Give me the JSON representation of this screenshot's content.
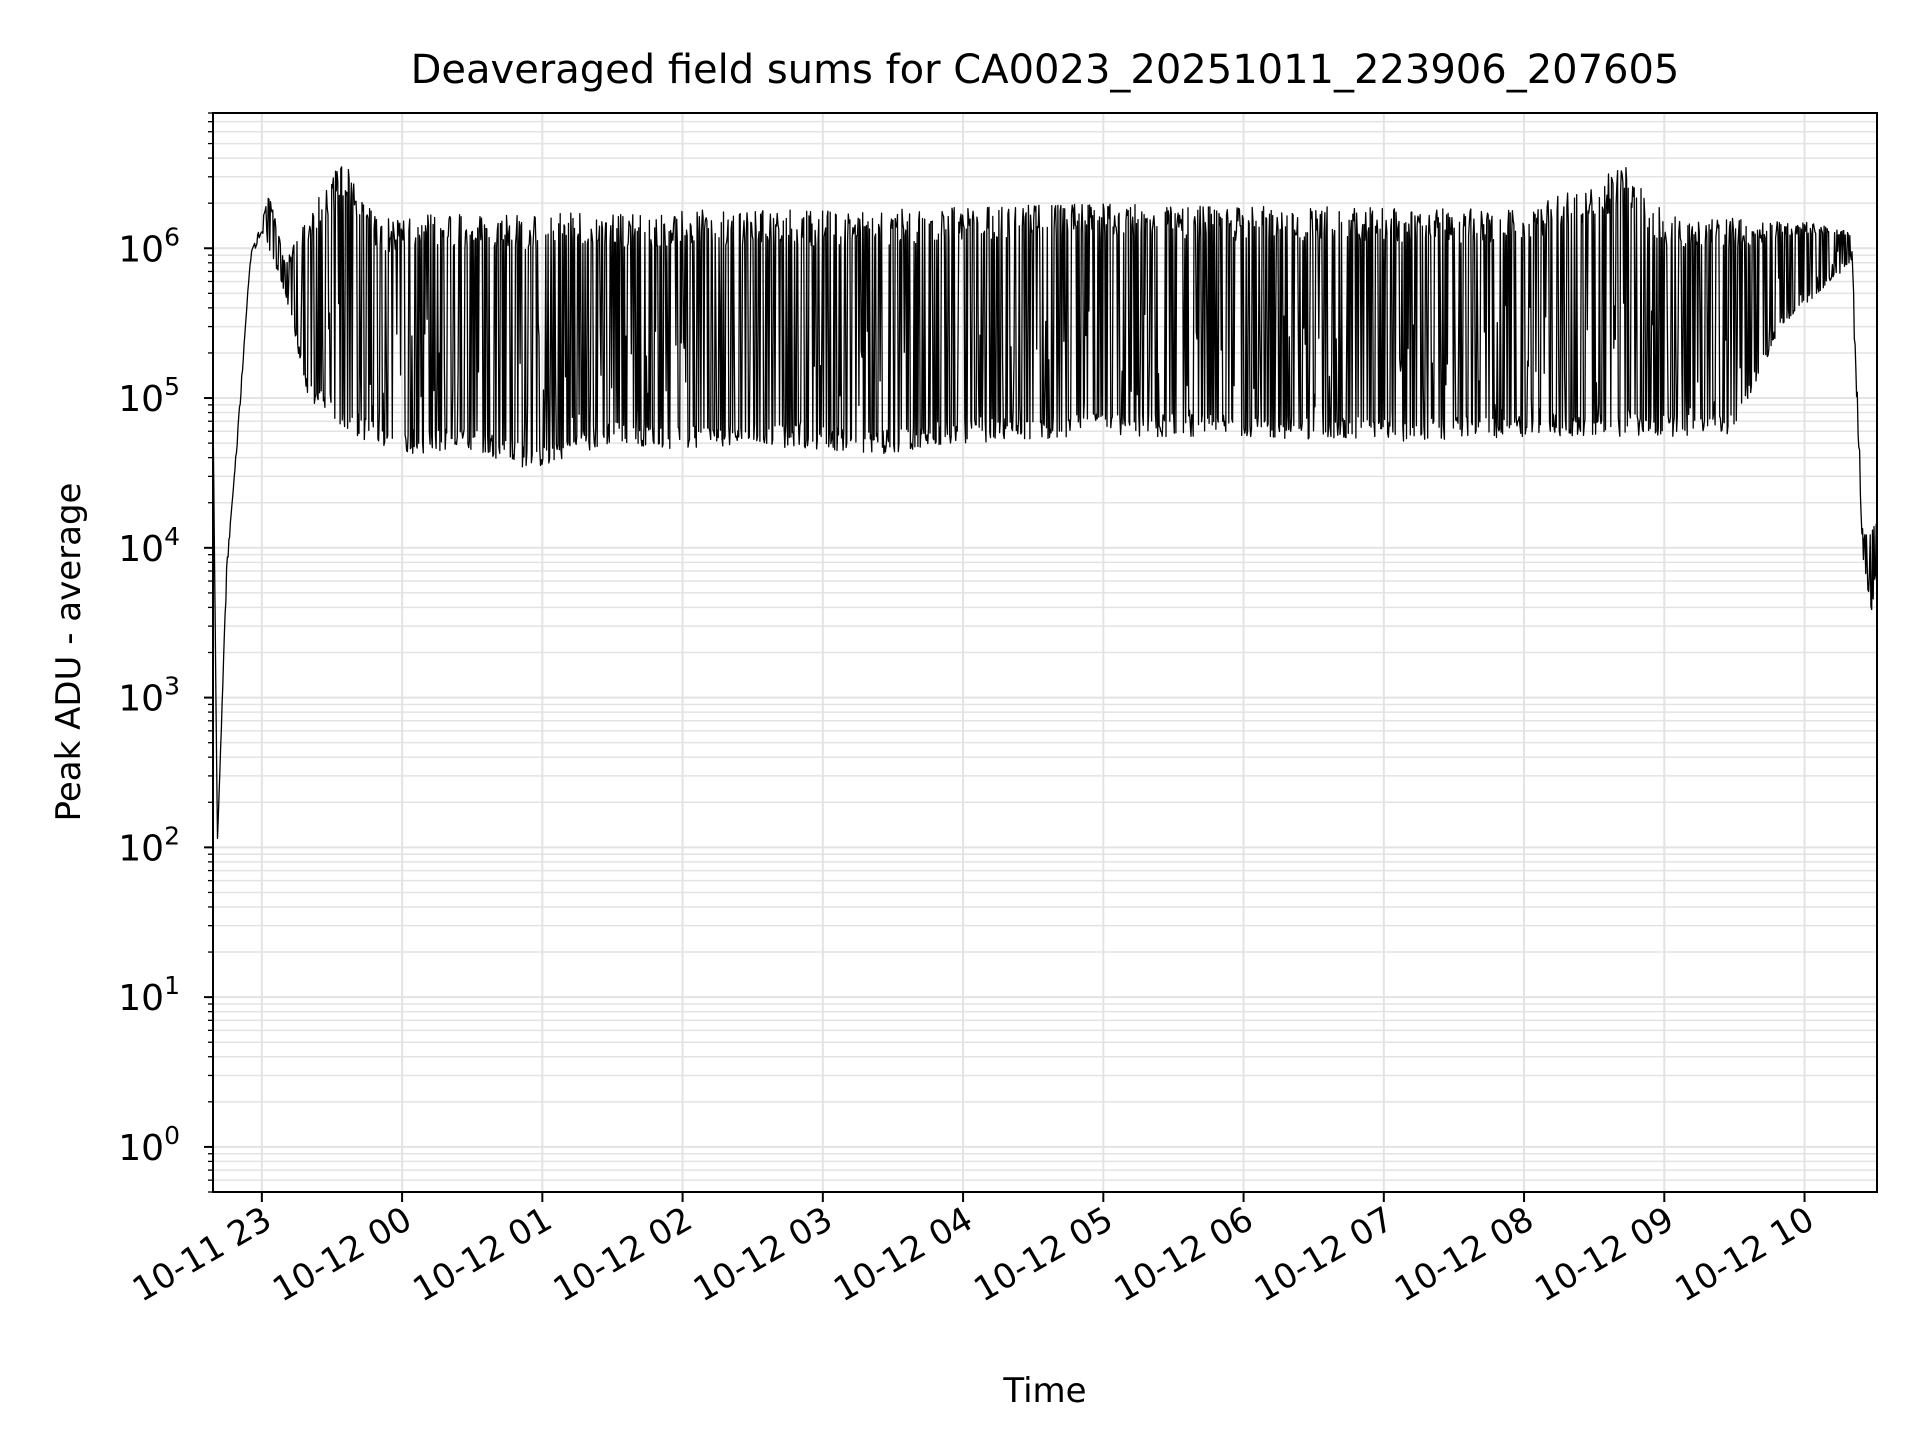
{
  "chart_data": {
    "type": "line",
    "title": "Deaveraged field sums for CA0023_20251011_223906_207605",
    "xlabel": "Time",
    "ylabel": "Peak ADU - average",
    "yscale": "log",
    "grid": true,
    "legend": "none",
    "x_range": [
      "2025-10-11T22:39:06",
      "2025-10-12T10:31:00"
    ],
    "y_range": [
      0.5,
      8000000
    ],
    "x_ticks": [
      {
        "label": "10-11 23",
        "time": "2025-10-11T23:00:00"
      },
      {
        "label": "10-12 00",
        "time": "2025-10-12T00:00:00"
      },
      {
        "label": "10-12 01",
        "time": "2025-10-12T01:00:00"
      },
      {
        "label": "10-12 02",
        "time": "2025-10-12T02:00:00"
      },
      {
        "label": "10-12 03",
        "time": "2025-10-12T03:00:00"
      },
      {
        "label": "10-12 04",
        "time": "2025-10-12T04:00:00"
      },
      {
        "label": "10-12 05",
        "time": "2025-10-12T05:00:00"
      },
      {
        "label": "10-12 06",
        "time": "2025-10-12T06:00:00"
      },
      {
        "label": "10-12 07",
        "time": "2025-10-12T07:00:00"
      },
      {
        "label": "10-12 08",
        "time": "2025-10-12T08:00:00"
      },
      {
        "label": "10-12 09",
        "time": "2025-10-12T09:00:00"
      },
      {
        "label": "10-12 10",
        "time": "2025-10-12T10:00:00"
      }
    ],
    "y_ticks": [
      {
        "base": "10",
        "exp": "0",
        "value": 1
      },
      {
        "base": "10",
        "exp": "1",
        "value": 10
      },
      {
        "base": "10",
        "exp": "2",
        "value": 100
      },
      {
        "base": "10",
        "exp": "3",
        "value": 1000
      },
      {
        "base": "10",
        "exp": "4",
        "value": 10000
      },
      {
        "base": "10",
        "exp": "5",
        "value": 100000
      },
      {
        "base": "10",
        "exp": "6",
        "value": 1000000
      }
    ],
    "series": [
      {
        "color": "#000000",
        "envelope_upper": [
          {
            "time": "2025-10-11T22:39:06",
            "value": 80000
          },
          {
            "time": "2025-10-11T22:41:00",
            "value": 110
          },
          {
            "time": "2025-10-11T22:45:00",
            "value": 8000
          },
          {
            "time": "2025-10-11T22:50:00",
            "value": 60000
          },
          {
            "time": "2025-10-11T22:55:00",
            "value": 900000
          },
          {
            "time": "2025-10-11T23:00:00",
            "value": 1500000
          },
          {
            "time": "2025-10-11T23:03:00",
            "value": 2400000
          },
          {
            "time": "2025-10-11T23:10:00",
            "value": 800000
          },
          {
            "time": "2025-10-11T23:20:00",
            "value": 1700000
          },
          {
            "time": "2025-10-11T23:35:00",
            "value": 4000000
          },
          {
            "time": "2025-10-11T23:50:00",
            "value": 1600000
          },
          {
            "time": "2025-10-12T00:10:00",
            "value": 1700000
          },
          {
            "time": "2025-10-12T00:45:00",
            "value": 1700000
          },
          {
            "time": "2025-10-12T01:10:00",
            "value": 1800000
          },
          {
            "time": "2025-10-12T01:30:00",
            "value": 1700000
          },
          {
            "time": "2025-10-12T02:10:00",
            "value": 1800000
          },
          {
            "time": "2025-10-12T02:35:00",
            "value": 1800000
          },
          {
            "time": "2025-10-12T03:15:00",
            "value": 1800000
          },
          {
            "time": "2025-10-12T04:00:00",
            "value": 1900000
          },
          {
            "time": "2025-10-12T05:00:00",
            "value": 2000000
          },
          {
            "time": "2025-10-12T06:00:00",
            "value": 1900000
          },
          {
            "time": "2025-10-12T07:00:00",
            "value": 1900000
          },
          {
            "time": "2025-10-12T08:00:00",
            "value": 1800000
          },
          {
            "time": "2025-10-12T08:45:00",
            "value": 3600000
          },
          {
            "time": "2025-10-12T09:00:00",
            "value": 1700000
          },
          {
            "time": "2025-10-12T09:30:00",
            "value": 1600000
          },
          {
            "time": "2025-10-12T10:00:00",
            "value": 1500000
          },
          {
            "time": "2025-10-12T10:20:00",
            "value": 1300000
          },
          {
            "time": "2025-10-12T10:25:00",
            "value": 12000
          },
          {
            "time": "2025-10-12T10:31:00",
            "value": 15000
          }
        ],
        "envelope_lower": [
          {
            "time": "2025-10-11T22:39:06",
            "value": 80000
          },
          {
            "time": "2025-10-11T22:41:00",
            "value": 110
          },
          {
            "time": "2025-10-11T22:45:00",
            "value": 6500
          },
          {
            "time": "2025-10-11T22:55:00",
            "value": 800000
          },
          {
            "time": "2025-10-11T23:00:00",
            "value": 1300000
          },
          {
            "time": "2025-10-11T23:10:00",
            "value": 500000
          },
          {
            "time": "2025-10-11T23:20:00",
            "value": 95000
          },
          {
            "time": "2025-10-11T23:40:00",
            "value": 55000
          },
          {
            "time": "2025-10-12T00:00:00",
            "value": 42000
          },
          {
            "time": "2025-10-12T00:30:00",
            "value": 45000
          },
          {
            "time": "2025-10-12T00:55:00",
            "value": 33000
          },
          {
            "time": "2025-10-12T01:30:00",
            "value": 50000
          },
          {
            "time": "2025-10-12T02:00:00",
            "value": 45000
          },
          {
            "time": "2025-10-12T02:30:00",
            "value": 48000
          },
          {
            "time": "2025-10-12T03:00:00",
            "value": 45000
          },
          {
            "time": "2025-10-12T03:30:00",
            "value": 42000
          },
          {
            "time": "2025-10-12T04:00:00",
            "value": 50000
          },
          {
            "time": "2025-10-12T05:00:00",
            "value": 55000
          },
          {
            "time": "2025-10-12T06:00:00",
            "value": 55000
          },
          {
            "time": "2025-10-12T07:00:00",
            "value": 50000
          },
          {
            "time": "2025-10-12T08:00:00",
            "value": 55000
          },
          {
            "time": "2025-10-12T09:00:00",
            "value": 55000
          },
          {
            "time": "2025-10-12T09:30:00",
            "value": 58000
          },
          {
            "time": "2025-10-12T09:50:00",
            "value": 300000
          },
          {
            "time": "2025-10-12T10:20:00",
            "value": 800000
          },
          {
            "time": "2025-10-12T10:25:00",
            "value": 8000
          },
          {
            "time": "2025-10-12T10:29:00",
            "value": 3500
          },
          {
            "time": "2025-10-12T10:31:00",
            "value": 9000
          }
        ]
      }
    ]
  }
}
